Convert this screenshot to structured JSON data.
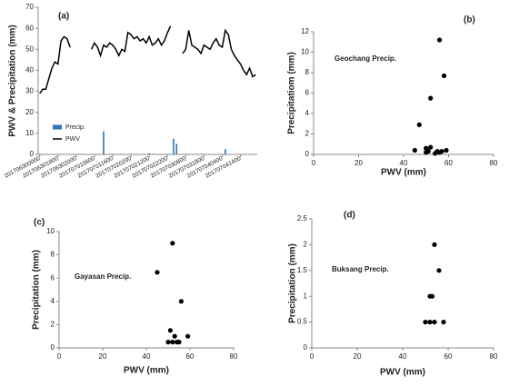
{
  "chart_data": [
    {
      "type": "line",
      "panel": "(a)",
      "ylabel": "PWV & Precipitation (mm)",
      "categories": [
        "201706300000",
        null,
        null,
        null,
        null,
        null,
        "201706301800",
        null,
        null,
        null,
        null,
        null,
        "201706302000",
        null,
        null,
        null,
        null,
        null,
        "201707010600",
        null,
        null,
        null,
        null,
        null,
        "201707011600",
        null,
        null,
        null,
        null,
        null,
        "201707020200",
        null,
        null,
        null,
        null,
        null,
        "201707021200",
        null,
        null,
        null,
        null,
        null,
        "201707022200",
        null,
        null,
        null,
        null,
        null,
        "201707030800",
        null,
        null,
        null,
        null,
        null,
        "201707031800",
        null,
        null,
        null,
        null,
        null,
        "201707040400",
        null,
        null,
        null,
        null,
        null,
        "201707041400",
        null,
        null,
        null,
        null,
        null
      ],
      "series": [
        {
          "name": "Precip.",
          "type": "bar",
          "color": "#2e75b6",
          "values": [
            0,
            0,
            0,
            0,
            0,
            0,
            0,
            0,
            0,
            0,
            0,
            0,
            0,
            0,
            0,
            0,
            0,
            0,
            0,
            0,
            0,
            11,
            0,
            0,
            0,
            0,
            0,
            0,
            0,
            0,
            0,
            0,
            0,
            0,
            0,
            0,
            0.5,
            0,
            0,
            0,
            0,
            0,
            0,
            0,
            7.5,
            5,
            0,
            0,
            0,
            0,
            0,
            0,
            0,
            0,
            0,
            0,
            0,
            0,
            0,
            0,
            0,
            2.5,
            0,
            0,
            0,
            0,
            0,
            0,
            0,
            0,
            0,
            0
          ]
        },
        {
          "name": "PWV",
          "type": "line",
          "color": "#000000",
          "values": [
            29,
            31,
            31,
            36,
            41,
            44,
            43,
            54,
            56,
            55,
            51,
            null,
            null,
            null,
            null,
            null,
            null,
            50,
            53,
            51,
            47,
            52,
            51,
            53,
            52,
            50,
            47,
            50,
            49,
            58,
            57,
            55,
            56,
            54,
            55,
            53,
            56,
            52,
            53,
            55,
            52,
            54,
            58,
            61,
            null,
            null,
            null,
            48,
            50,
            59,
            52,
            51,
            50,
            48,
            52,
            51,
            50,
            53,
            55,
            52,
            51,
            59,
            57,
            50,
            47,
            45,
            43,
            40,
            38,
            41,
            37,
            38
          ]
        }
      ],
      "ylim": [
        0,
        70
      ],
      "yticks": [
        0,
        10,
        20,
        30,
        40,
        50,
        60,
        70
      ],
      "legend": "left"
    },
    {
      "type": "scatter",
      "panel": "(b)",
      "annotation": "Geochang Precip.",
      "xlabel": "PWV (mm)",
      "ylabel": "Precipitatiom (mm)",
      "x": [
        56,
        58,
        52,
        47,
        45,
        50,
        50,
        52,
        51,
        55,
        56,
        57,
        59,
        54
      ],
      "values": [
        11.2,
        7.7,
        5.5,
        2.9,
        0.4,
        0.2,
        0.6,
        0.7,
        0.3,
        0.3,
        0.2,
        0.3,
        0.4,
        0.1
      ],
      "color": "#000000",
      "xlim": [
        0,
        80
      ],
      "xticks": [
        0,
        20,
        40,
        60,
        80
      ],
      "ylim": [
        0,
        12
      ],
      "yticks": [
        0,
        2,
        4,
        6,
        8,
        10,
        12
      ]
    },
    {
      "type": "scatter",
      "panel": "(c)",
      "annotation": "Gayasan Precip.",
      "xlabel": "PWV (mm)",
      "ylabel": "Precipitation (mm)",
      "x": [
        45,
        52,
        56,
        51,
        53,
        50,
        52,
        54,
        59,
        55
      ],
      "values": [
        6.5,
        9,
        4,
        1.5,
        1,
        0.5,
        0.5,
        0.5,
        1,
        0.5
      ],
      "color": "#000000",
      "xlim": [
        0,
        80
      ],
      "xticks": [
        0,
        20,
        40,
        60,
        80
      ],
      "ylim": [
        0,
        10
      ],
      "yticks": [
        0,
        2,
        4,
        6,
        8,
        10
      ]
    },
    {
      "type": "scatter",
      "panel": "(d)",
      "annotation": "Buksang Precip.",
      "xlabel": "PWV (mm)",
      "ylabel": "Precipitation (mm)",
      "x": [
        54,
        56,
        52,
        53,
        50,
        52,
        54,
        58
      ],
      "values": [
        2,
        1.5,
        1,
        1,
        0.5,
        0.5,
        0.5,
        0.5
      ],
      "color": "#000000",
      "xlim": [
        0,
        80
      ],
      "xticks": [
        0,
        20,
        40,
        60,
        80
      ],
      "ylim": [
        0,
        2.5
      ],
      "yticks": [
        0,
        0.5,
        1,
        1.5,
        2,
        2.5
      ]
    }
  ]
}
